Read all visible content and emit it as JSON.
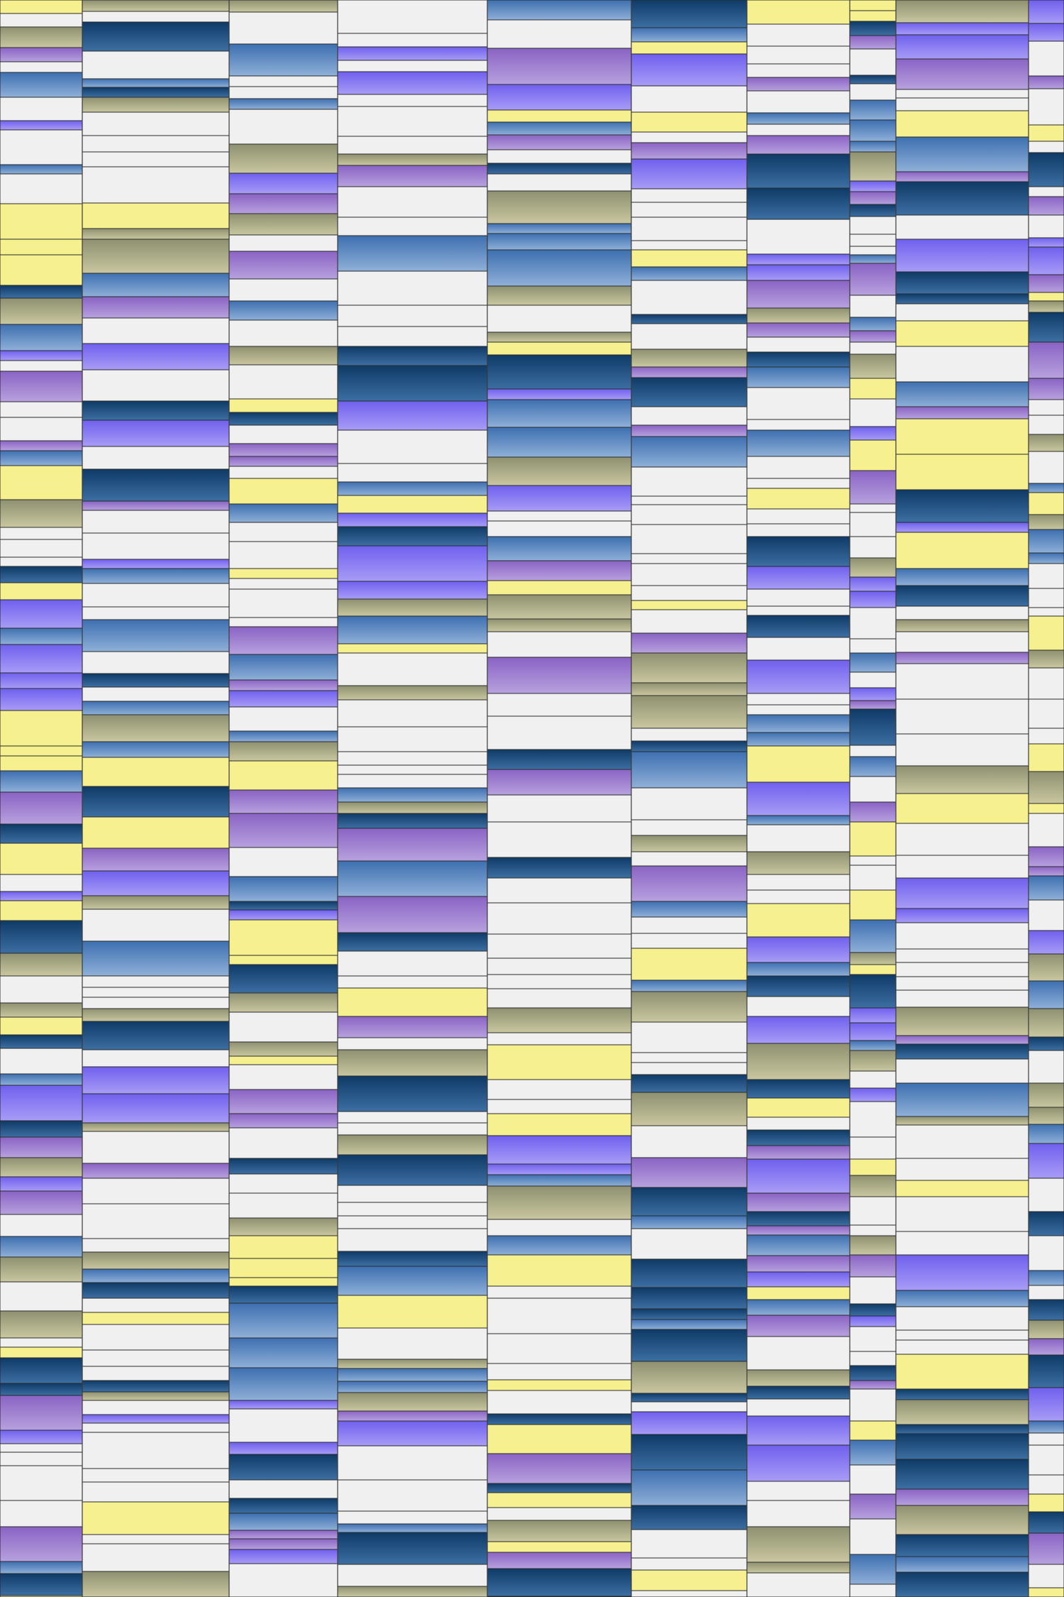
{
  "palette": {
    "white": "#f0f0f0",
    "yellow": "#f6f08f",
    "blue": "#4a7fb8",
    "navy": "#0e3a66",
    "violet": "#7a6cf2",
    "purple": "#8b66c9",
    "olive": "#9a9a6a"
  },
  "gradients": [
    "navy",
    "blue",
    "violet",
    "purple"
  ],
  "column_count": 10,
  "row_count": 118,
  "seed": 20240611
}
